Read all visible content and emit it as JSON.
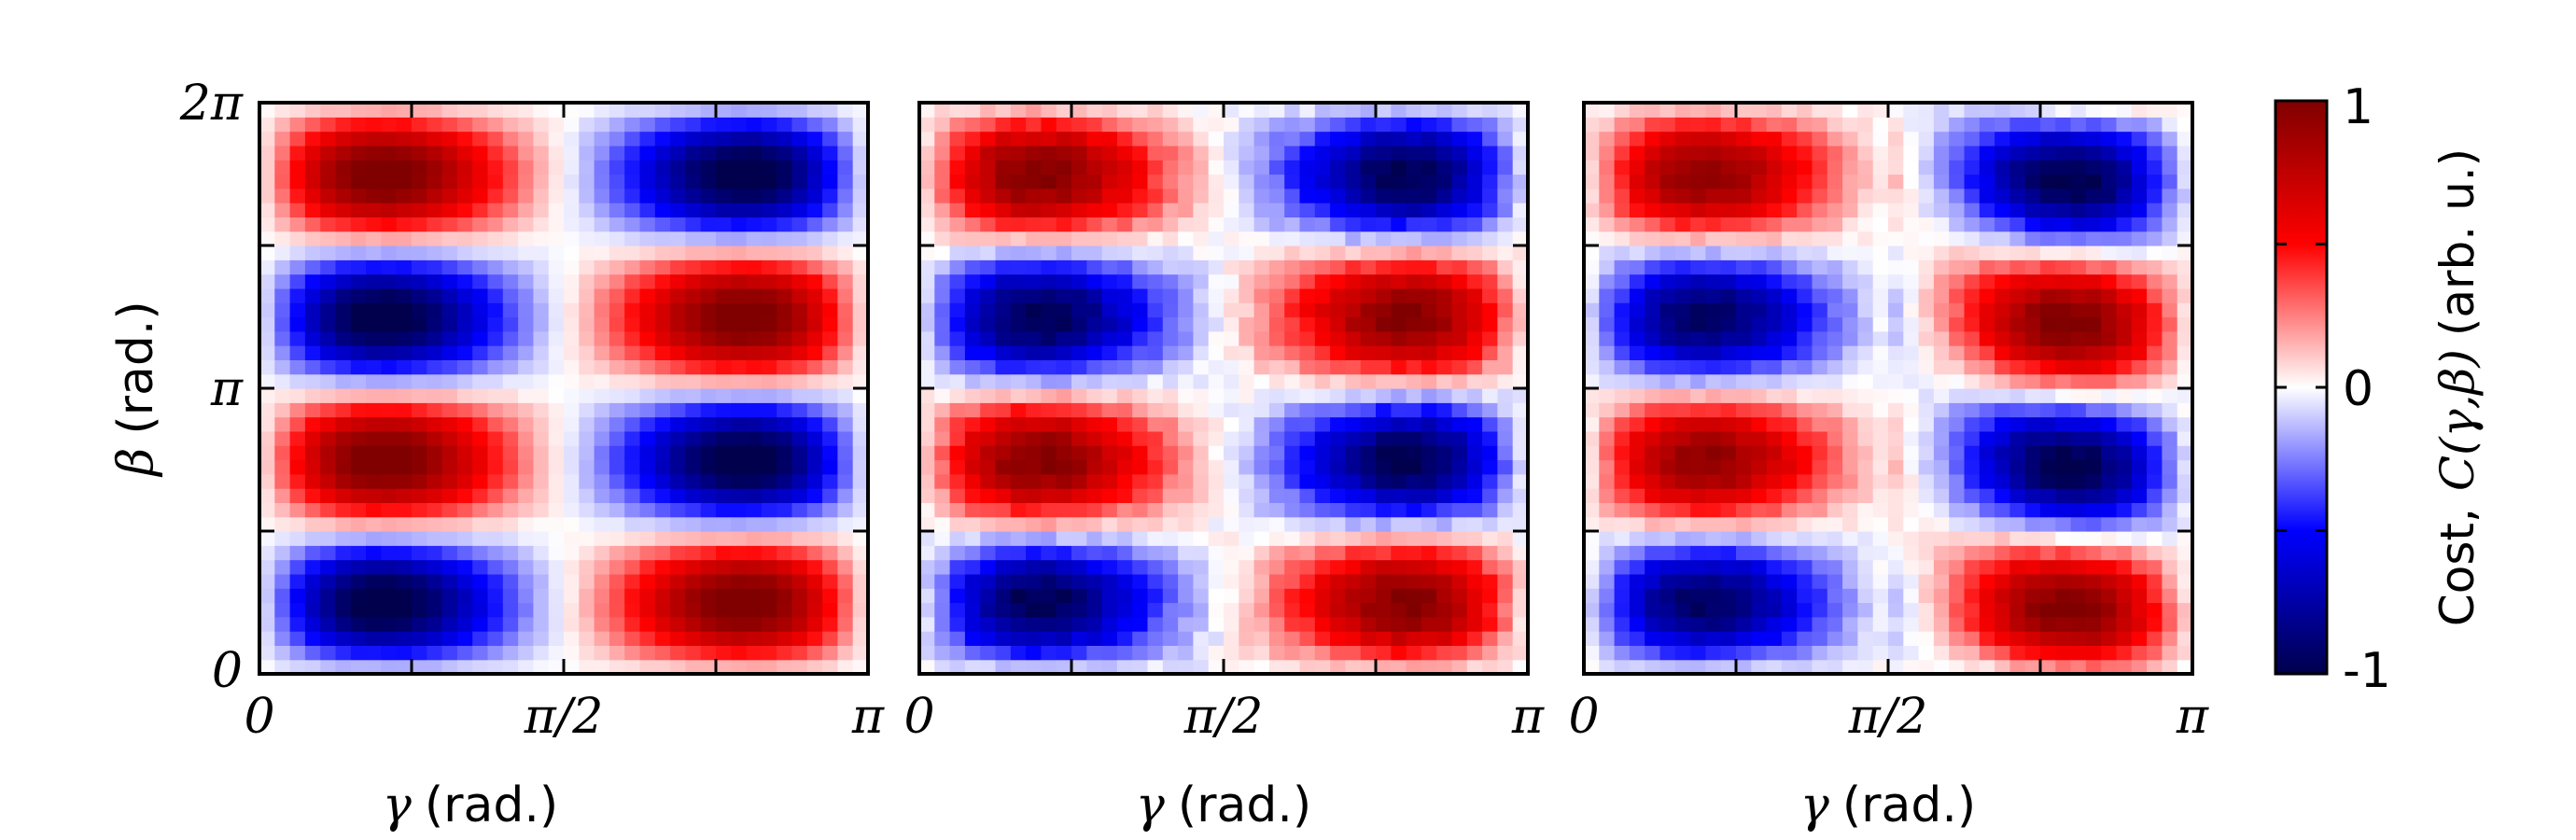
{
  "chart_data": {
    "type": "heatmap",
    "panels": [
      {
        "name": "left",
        "x": {
          "label_symbol": "γ",
          "label_unit": "(rad.)",
          "range": [
            0,
            3.14159
          ],
          "ticks": [
            "0",
            "π/2",
            "π"
          ]
        },
        "y": {
          "label_symbol": "β",
          "label_unit": "(rad.)",
          "range": [
            0,
            6.28319
          ],
          "ticks": [
            "0",
            "π",
            "2π"
          ]
        },
        "model": {
          "amp": 1.0,
          "second_amp": 0.3,
          "noise": 0.015,
          "skew": 0.0
        }
      },
      {
        "name": "middle",
        "x": {
          "label_symbol": "γ",
          "label_unit": "(rad.)",
          "range": [
            0,
            3.14159
          ],
          "ticks": [
            "0",
            "π/2",
            "π"
          ]
        },
        "model": {
          "amp": 0.92,
          "second_amp": 0.32,
          "noise": 0.05,
          "skew": 0.0
        }
      },
      {
        "name": "right",
        "x": {
          "label_symbol": "γ",
          "label_unit": "(rad.)",
          "range": [
            0,
            3.14159
          ],
          "ticks": [
            "0",
            "π/2",
            "π"
          ]
        },
        "model": {
          "amp": 0.88,
          "second_amp": 0.3,
          "noise": 0.04,
          "skew": 0.6
        }
      }
    ],
    "colorbar": {
      "range": [
        -1,
        1
      ],
      "ticks": [
        "-1",
        "0",
        "1"
      ],
      "label_prefix": "Cost,",
      "label_math": "C(γ,β)",
      "label_suffix": "(arb. u.)",
      "colormap": "seismic"
    },
    "grid": false
  }
}
